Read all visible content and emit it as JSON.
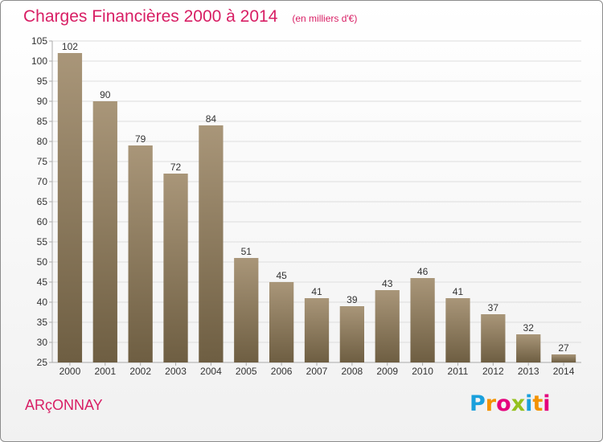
{
  "title": "Charges Financières 2000 à 2014",
  "subtitle": "(en milliers d'€)",
  "commune": "ARçONNAY",
  "logo": {
    "text": "Proxiti",
    "letters": [
      {
        "char": "P",
        "color": "#1aa0dc"
      },
      {
        "char": "r",
        "color": "#f39200"
      },
      {
        "char": "o",
        "color": "#e5007d"
      },
      {
        "char": "x",
        "color": "#95c11f"
      },
      {
        "char": "i",
        "color": "#1aa0dc"
      },
      {
        "char": "t",
        "color": "#f39200"
      },
      {
        "char": "i",
        "color": "#e5007d"
      }
    ]
  },
  "colors": {
    "accent": "#d81e64",
    "bar_top": "#a99679",
    "bar_bottom": "#6e5e42",
    "grid": "#dddddd",
    "axis": "#aaaaaa",
    "text": "#333333"
  },
  "chart_data": {
    "type": "bar",
    "title": "Charges Financières 2000 à 2014",
    "subtitle": "(en milliers d'€)",
    "xlabel": "",
    "ylabel": "",
    "categories": [
      "2000",
      "2001",
      "2002",
      "2003",
      "2004",
      "2005",
      "2006",
      "2007",
      "2008",
      "2009",
      "2010",
      "2011",
      "2012",
      "2013",
      "2014"
    ],
    "values": [
      102,
      90,
      79,
      72,
      84,
      51,
      45,
      41,
      39,
      43,
      46,
      41,
      37,
      32,
      27
    ],
    "ylim": [
      25,
      105
    ],
    "yticks": [
      25,
      30,
      35,
      40,
      45,
      50,
      55,
      60,
      65,
      70,
      75,
      80,
      85,
      90,
      95,
      100,
      105
    ],
    "grid": true,
    "data_labels": true
  }
}
